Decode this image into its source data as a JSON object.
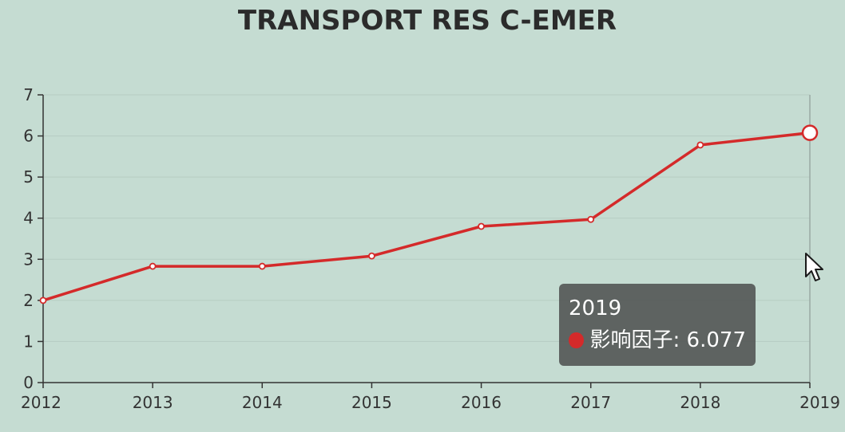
{
  "chart_data": {
    "type": "line",
    "title": "TRANSPORT RES C-EMER",
    "x": [
      "2012",
      "2013",
      "2014",
      "2015",
      "2016",
      "2017",
      "2018",
      "2019"
    ],
    "series": [
      {
        "name": "影响因子",
        "values": [
          2.0,
          2.83,
          2.83,
          3.08,
          3.8,
          3.97,
          5.78,
          6.077
        ]
      }
    ],
    "ylim": [
      0,
      7
    ],
    "yticks": [
      "0",
      "1",
      "2",
      "3",
      "4",
      "5",
      "6",
      "7"
    ],
    "grid": true,
    "line_color": "#d42a2a"
  },
  "tooltip": {
    "title": "2019",
    "series_name": "影响因子",
    "value": "6.077",
    "label": "影响因子: 6.077",
    "dot_color": "#d42a2a"
  },
  "cursor_icon": "arrow-cursor-icon"
}
